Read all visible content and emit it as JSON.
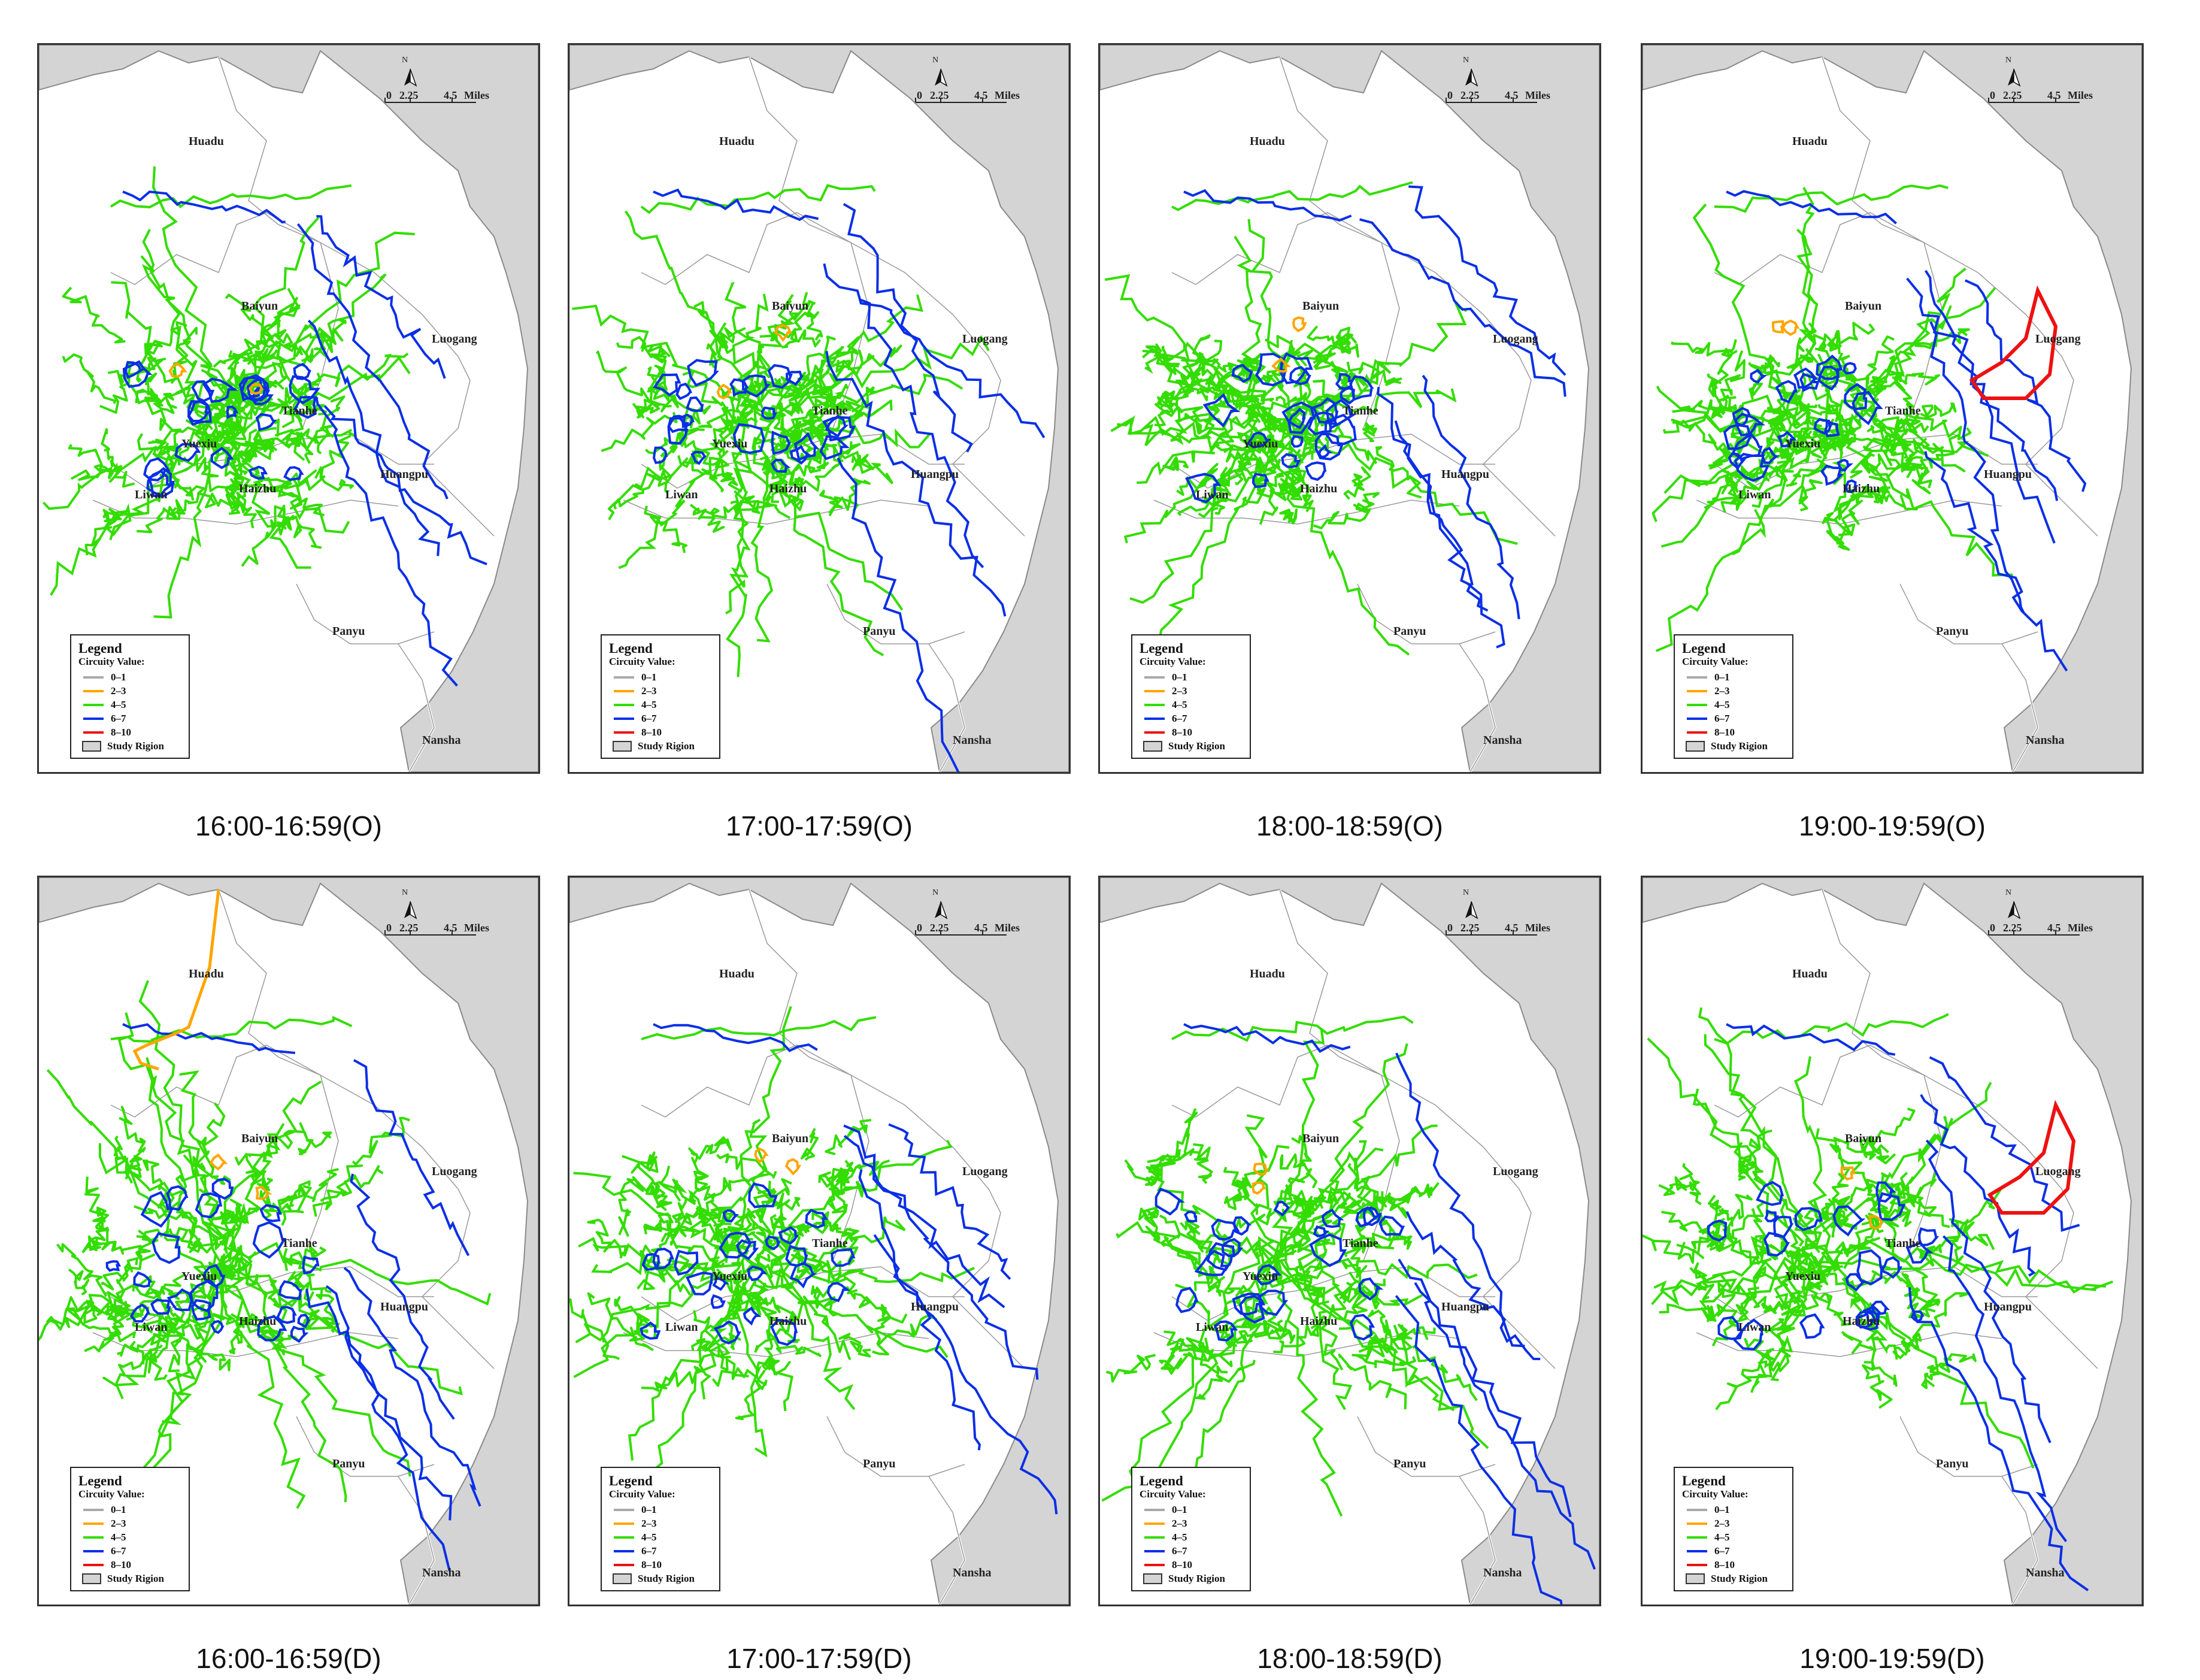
{
  "figure": {
    "panels": [
      {
        "caption": "16:00-16:59(O)",
        "variant": 0,
        "flow": "O"
      },
      {
        "caption": "17:00-17:59(O)",
        "variant": 1,
        "flow": "O"
      },
      {
        "caption": "18:00-18:59(O)",
        "variant": 2,
        "flow": "O"
      },
      {
        "caption": "19:00-19:59(O)",
        "variant": 3,
        "flow": "O"
      },
      {
        "caption": "16:00-16:59(D)",
        "variant": 4,
        "flow": "D"
      },
      {
        "caption": "17:00-17:59(D)",
        "variant": 5,
        "flow": "D"
      },
      {
        "caption": "18:00-18:59(D)",
        "variant": 6,
        "flow": "D"
      },
      {
        "caption": "19:00-19:59(D)",
        "variant": 7,
        "flow": "D"
      }
    ]
  },
  "map": {
    "districts": [
      "Huadu",
      "Baiyun",
      "Luogang",
      "Tianhe",
      "Yuexiu",
      "Liwan",
      "Haizhu",
      "Huangpu",
      "Panyu",
      "Nansha"
    ],
    "scale": {
      "north": "N",
      "tick0": "0",
      "tick1": "2.25",
      "tick2": "4.5",
      "unit": "Miles"
    },
    "legend": {
      "title": "Legend",
      "subtitle": "Circuity Value:",
      "items": [
        {
          "label": "0–1",
          "color": "#a9a9a9"
        },
        {
          "label": "2–3",
          "color": "#ffa500"
        },
        {
          "label": "4–5",
          "color": "#33dd00"
        },
        {
          "label": "6–7",
          "color": "#0a2fe6"
        },
        {
          "label": "8–10",
          "color": "#ee1111"
        }
      ],
      "region_label": "Study Rigion",
      "region_color": "#d4d4d4"
    }
  },
  "colors": {
    "region_fill": "#d4d4d4",
    "boundary": "#8a8a8a",
    "green": "#33dd00",
    "blue": "#0a2fe6",
    "orange": "#ffa500",
    "red": "#ee1111"
  }
}
